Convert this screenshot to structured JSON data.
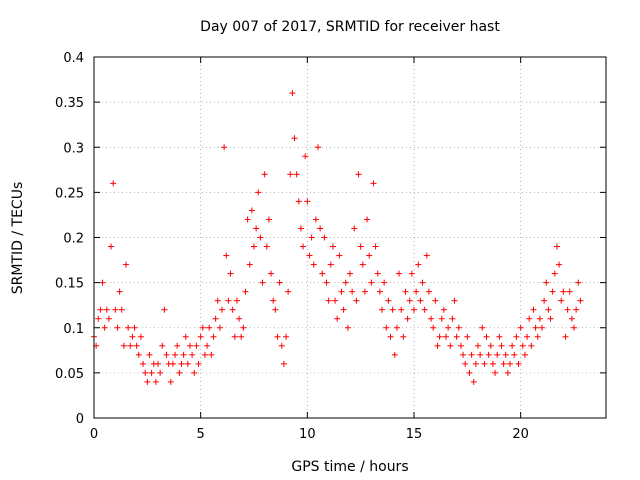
{
  "chart_data": {
    "type": "scatter",
    "title": "Day 007 of 2017, SRMTID for receiver hast",
    "xlabel": "GPS time / hours",
    "ylabel": "SRMTID / TECUs",
    "xlim": [
      0,
      24
    ],
    "ylim": [
      0,
      0.4
    ],
    "xticks": [
      0,
      5,
      10,
      15,
      20
    ],
    "xtick_labels": [
      "0",
      "5",
      "10",
      "15",
      "20"
    ],
    "yticks": [
      0,
      0.05,
      0.1,
      0.15,
      0.2,
      0.25,
      0.3,
      0.35,
      0.4
    ],
    "ytick_labels": [
      "0",
      "0.05",
      "0.1",
      "0.15",
      "0.2",
      "0.25",
      "0.3",
      "0.35",
      "0.4"
    ],
    "grid": true,
    "marker": "+",
    "color": "#ff0000",
    "series": [
      {
        "name": "SRMTID",
        "x": [
          0.0,
          0.1,
          0.2,
          0.3,
          0.4,
          0.5,
          0.6,
          0.7,
          0.8,
          0.9,
          1.0,
          1.1,
          1.2,
          1.3,
          1.4,
          1.5,
          1.6,
          1.7,
          1.8,
          1.9,
          2.0,
          2.1,
          2.2,
          2.3,
          2.4,
          2.5,
          2.6,
          2.7,
          2.8,
          2.9,
          3.0,
          3.1,
          3.2,
          3.3,
          3.4,
          3.5,
          3.6,
          3.7,
          3.8,
          3.9,
          4.0,
          4.1,
          4.2,
          4.3,
          4.4,
          4.5,
          4.6,
          4.7,
          4.8,
          4.9,
          5.0,
          5.1,
          5.2,
          5.3,
          5.4,
          5.5,
          5.6,
          5.7,
          5.8,
          5.9,
          6.0,
          6.1,
          6.2,
          6.3,
          6.4,
          6.5,
          6.6,
          6.7,
          6.8,
          6.9,
          7.0,
          7.1,
          7.2,
          7.3,
          7.4,
          7.5,
          7.6,
          7.7,
          7.8,
          7.9,
          8.0,
          8.1,
          8.2,
          8.3,
          8.4,
          8.5,
          8.6,
          8.7,
          8.8,
          8.9,
          9.0,
          9.1,
          9.2,
          9.3,
          9.4,
          9.5,
          9.6,
          9.7,
          9.8,
          9.9,
          10.0,
          10.1,
          10.2,
          10.3,
          10.4,
          10.5,
          10.6,
          10.7,
          10.8,
          10.9,
          11.0,
          11.1,
          11.2,
          11.3,
          11.4,
          11.5,
          11.6,
          11.7,
          11.8,
          11.9,
          12.0,
          12.1,
          12.2,
          12.3,
          12.4,
          12.5,
          12.6,
          12.7,
          12.8,
          12.9,
          13.0,
          13.1,
          13.2,
          13.3,
          13.4,
          13.5,
          13.6,
          13.7,
          13.8,
          13.9,
          14.0,
          14.1,
          14.2,
          14.3,
          14.4,
          14.5,
          14.6,
          14.7,
          14.8,
          14.9,
          15.0,
          15.1,
          15.2,
          15.3,
          15.4,
          15.5,
          15.6,
          15.7,
          15.8,
          15.9,
          16.0,
          16.1,
          16.2,
          16.3,
          16.4,
          16.5,
          16.6,
          16.7,
          16.8,
          16.9,
          17.0,
          17.1,
          17.2,
          17.3,
          17.4,
          17.5,
          17.6,
          17.7,
          17.8,
          17.9,
          18.0,
          18.1,
          18.2,
          18.3,
          18.4,
          18.5,
          18.6,
          18.7,
          18.8,
          18.9,
          19.0,
          19.1,
          19.2,
          19.3,
          19.4,
          19.5,
          19.6,
          19.7,
          19.8,
          19.9,
          20.0,
          20.1,
          20.2,
          20.3,
          20.4,
          20.5,
          20.6,
          20.7,
          20.8,
          20.9,
          21.0,
          21.1,
          21.2,
          21.3,
          21.4,
          21.5,
          21.6,
          21.7,
          21.8,
          21.9,
          22.0,
          22.1,
          22.2,
          22.3,
          22.4,
          22.5,
          22.6,
          22.7,
          22.8
        ],
        "y": [
          0.09,
          0.08,
          0.11,
          0.12,
          0.15,
          0.1,
          0.12,
          0.11,
          0.19,
          0.26,
          0.12,
          0.1,
          0.14,
          0.12,
          0.08,
          0.17,
          0.1,
          0.08,
          0.09,
          0.1,
          0.08,
          0.07,
          0.09,
          0.06,
          0.05,
          0.04,
          0.07,
          0.05,
          0.06,
          0.04,
          0.06,
          0.05,
          0.08,
          0.12,
          0.07,
          0.06,
          0.04,
          0.06,
          0.07,
          0.08,
          0.05,
          0.06,
          0.07,
          0.09,
          0.06,
          0.08,
          0.07,
          0.05,
          0.08,
          0.06,
          0.09,
          0.1,
          0.07,
          0.08,
          0.1,
          0.07,
          0.09,
          0.11,
          0.13,
          0.1,
          0.12,
          0.3,
          0.18,
          0.13,
          0.16,
          0.12,
          0.09,
          0.13,
          0.11,
          0.09,
          0.1,
          0.14,
          0.22,
          0.17,
          0.23,
          0.19,
          0.21,
          0.25,
          0.2,
          0.15,
          0.27,
          0.19,
          0.22,
          0.16,
          0.13,
          0.12,
          0.09,
          0.15,
          0.08,
          0.06,
          0.09,
          0.14,
          0.27,
          0.36,
          0.31,
          0.27,
          0.24,
          0.21,
          0.19,
          0.29,
          0.24,
          0.18,
          0.2,
          0.17,
          0.22,
          0.3,
          0.21,
          0.16,
          0.2,
          0.15,
          0.13,
          0.17,
          0.19,
          0.13,
          0.11,
          0.18,
          0.14,
          0.12,
          0.15,
          0.1,
          0.16,
          0.14,
          0.21,
          0.13,
          0.27,
          0.19,
          0.17,
          0.14,
          0.22,
          0.18,
          0.15,
          0.26,
          0.19,
          0.16,
          0.14,
          0.12,
          0.15,
          0.1,
          0.13,
          0.09,
          0.12,
          0.07,
          0.1,
          0.16,
          0.12,
          0.09,
          0.14,
          0.11,
          0.13,
          0.16,
          0.12,
          0.14,
          0.17,
          0.13,
          0.15,
          0.12,
          0.18,
          0.14,
          0.11,
          0.1,
          0.13,
          0.08,
          0.09,
          0.11,
          0.12,
          0.09,
          0.1,
          0.08,
          0.11,
          0.13,
          0.09,
          0.1,
          0.08,
          0.07,
          0.06,
          0.09,
          0.05,
          0.07,
          0.04,
          0.06,
          0.08,
          0.07,
          0.1,
          0.06,
          0.09,
          0.07,
          0.08,
          0.06,
          0.05,
          0.07,
          0.09,
          0.08,
          0.06,
          0.07,
          0.05,
          0.06,
          0.08,
          0.07,
          0.09,
          0.06,
          0.1,
          0.08,
          0.07,
          0.09,
          0.11,
          0.08,
          0.12,
          0.1,
          0.09,
          0.11,
          0.1,
          0.13,
          0.15,
          0.12,
          0.11,
          0.14,
          0.16,
          0.19,
          0.17,
          0.13,
          0.14,
          0.09,
          0.12,
          0.14,
          0.11,
          0.1,
          0.12,
          0.15,
          0.13
        ]
      }
    ]
  }
}
